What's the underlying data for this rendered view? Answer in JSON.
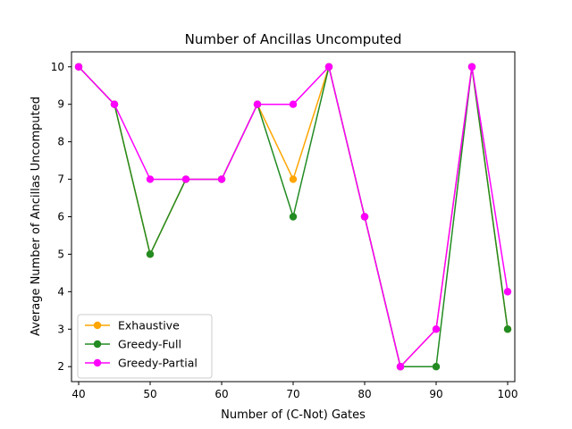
{
  "chart_data": {
    "type": "line",
    "title": "Number of Ancillas Uncomputed",
    "xlabel": "Number of (C-Not) Gates",
    "ylabel": "Average Number of Ancillas Uncomputed",
    "x": [
      40,
      45,
      50,
      55,
      60,
      65,
      70,
      75,
      80,
      85,
      90,
      95,
      100
    ],
    "xlim": [
      39,
      101
    ],
    "ylim": [
      1.6,
      10.4
    ],
    "xticks": [
      40,
      50,
      60,
      70,
      80,
      90,
      100
    ],
    "yticks": [
      2,
      3,
      4,
      5,
      6,
      7,
      8,
      9,
      10
    ],
    "grid": false,
    "legend_position": "lower-left",
    "series": [
      {
        "name": "Exhaustive",
        "color": "#ffa500",
        "marker": "circle",
        "values": [
          10,
          9,
          5,
          7,
          7,
          9,
          7,
          10,
          6,
          2,
          3,
          10,
          3
        ]
      },
      {
        "name": "Greedy-Full",
        "color": "#228b22",
        "marker": "circle",
        "values": [
          10,
          9,
          5,
          7,
          7,
          9,
          6,
          10,
          6,
          2,
          2,
          10,
          3
        ]
      },
      {
        "name": "Greedy-Partial",
        "color": "#ff00ff",
        "marker": "circle",
        "values": [
          10,
          9,
          7,
          7,
          7,
          9,
          9,
          10,
          6,
          2,
          3,
          10,
          4
        ]
      }
    ]
  }
}
